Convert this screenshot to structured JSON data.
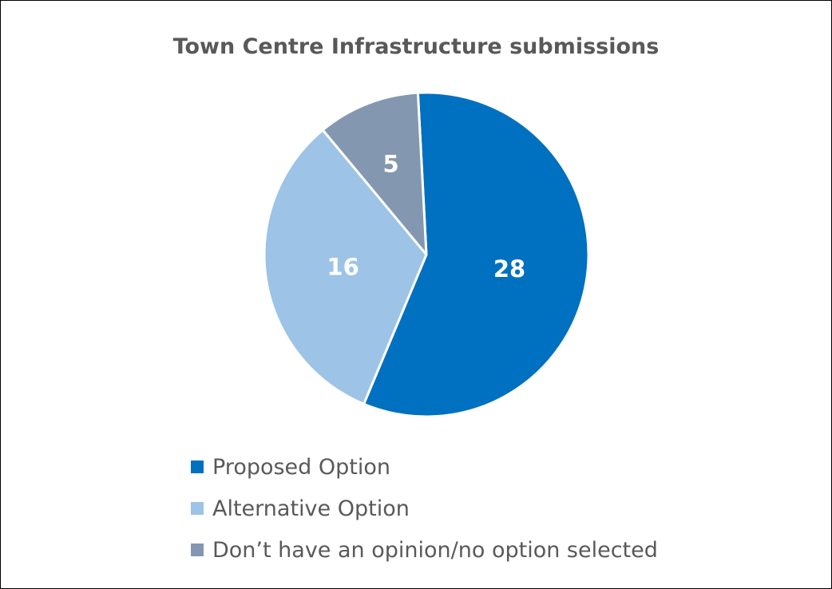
{
  "chart_data": {
    "type": "pie",
    "title": "Town Centre Infrastructure submissions",
    "categories": [
      "Proposed Option",
      "Alternative Option",
      "Don’t have an opinion/no option selected"
    ],
    "values": [
      28,
      16,
      5
    ],
    "colors": [
      "#0070C0",
      "#9DC3E6",
      "#8497B0"
    ],
    "data_labels": [
      "28",
      "16",
      "5"
    ],
    "start_angle_deg": 357,
    "direction": "clockwise",
    "legend_position": "bottom",
    "slice_border_color": "#ffffff"
  }
}
